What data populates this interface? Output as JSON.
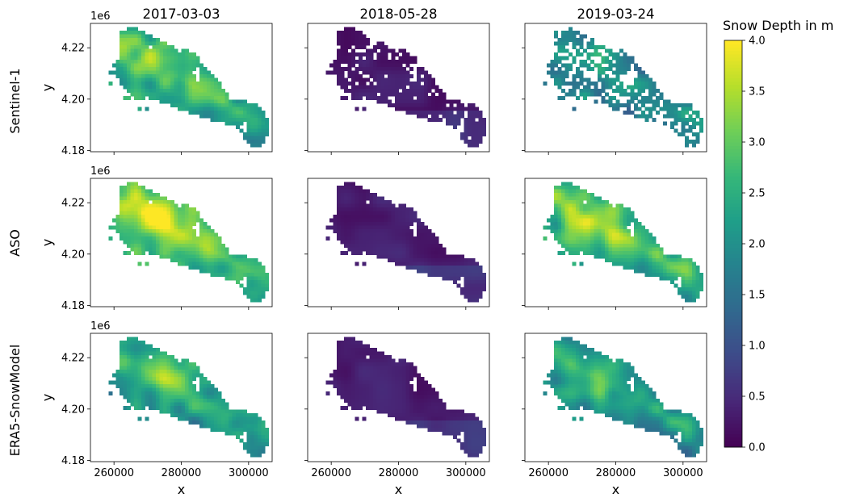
{
  "chart_data": {
    "type": "heatmap",
    "columns": [
      "2017-03-03",
      "2018-05-28",
      "2019-03-24"
    ],
    "rows": [
      "Sentinel-1",
      "ASO",
      "ERA5-SnowModel"
    ],
    "xlabel": "x",
    "ylabel": "y",
    "y_offset_label": "1e6",
    "xticks": [
      260000,
      280000,
      300000
    ],
    "xtick_labels": [
      "260000",
      "280000",
      "300000"
    ],
    "yticks": [
      4.18,
      4.2,
      4.22
    ],
    "ytick_labels": [
      "4.18",
      "4.20",
      "4.22"
    ],
    "xlim": [
      253000,
      307000
    ],
    "ylim": [
      4.1795,
      4.2295
    ],
    "colorbar": {
      "label": "Snow Depth in m",
      "range": [
        0,
        4
      ],
      "ticks": [
        0,
        0.5,
        1,
        1.5,
        2,
        2.5,
        3,
        3.5,
        4
      ],
      "tick_labels": [
        "0.0",
        "0.5",
        "1.0",
        "1.5",
        "2.0",
        "2.5",
        "3.0",
        "3.5",
        "4.0"
      ],
      "colormap": "viridis"
    },
    "approx_mean_snow_depth_m": [
      [
        2.9,
        0.2,
        2.2
      ],
      [
        3.0,
        0.3,
        2.9
      ],
      [
        2.6,
        0.25,
        2.5
      ]
    ]
  }
}
